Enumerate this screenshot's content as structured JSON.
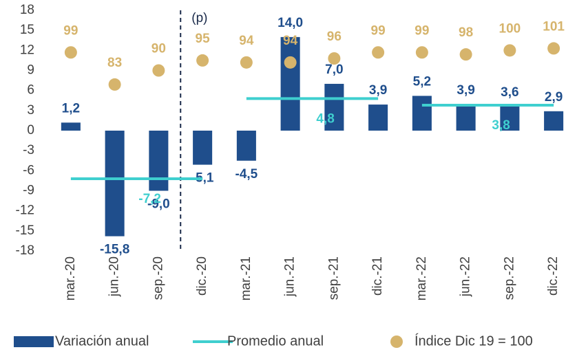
{
  "chart_data": {
    "type": "bar",
    "categories": [
      "mar.-20",
      "jun.-20",
      "sep.-20",
      "dic.-20",
      "mar.-21",
      "jun.-21",
      "sep.-21",
      "dic.-21",
      "mar.-22",
      "jun.-22",
      "sep.-22",
      "dic.-22"
    ],
    "annotation": "(p)",
    "ylim": [
      -18,
      18
    ],
    "yticks": [
      -18,
      -15,
      -12,
      -9,
      -6,
      -3,
      0,
      3,
      6,
      9,
      12,
      15,
      18
    ],
    "y2lim": [
      0,
      120
    ],
    "legend": "bottom",
    "series": [
      {
        "name": "Variación anual",
        "type": "bar",
        "color": "#1f4e8c",
        "values": [
          1.2,
          -15.8,
          -9.0,
          -5.1,
          -4.5,
          14.0,
          7.0,
          3.9,
          5.2,
          3.9,
          3.6,
          2.9
        ],
        "value_labels": [
          "1,2",
          "-15,8",
          "-9,0",
          "-5,1",
          "-4,5",
          "14,0",
          "7,0",
          "3,9",
          "5,2",
          "3,9",
          "3,6",
          "2,9"
        ]
      },
      {
        "name": "Promedio anual",
        "type": "line",
        "color": "#3fcfcf",
        "values": [
          -7.2,
          -7.2,
          -7.2,
          -7.2,
          4.8,
          4.8,
          4.8,
          4.8,
          3.8,
          3.8,
          3.8,
          3.8
        ],
        "value_labels": [
          "-7,2",
          null,
          null,
          null,
          "4,8",
          null,
          null,
          null,
          "3,8",
          null,
          null,
          null
        ]
      },
      {
        "name": "Índice Dic 19 = 100",
        "type": "scatter",
        "color": "#d6b46c",
        "axis": "y2",
        "values": [
          99,
          83,
          90,
          95,
          94,
          94,
          96,
          99,
          99,
          98,
          100,
          101
        ]
      }
    ]
  }
}
